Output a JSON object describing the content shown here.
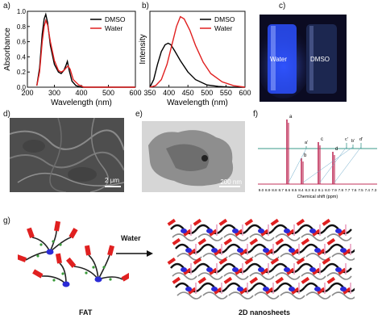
{
  "panels": {
    "a": "a)",
    "b": "b)",
    "c": "c)",
    "d": "d)",
    "e": "e)",
    "f": "f)",
    "g": "g)"
  },
  "chart_data": [
    {
      "type": "line",
      "xlabel": "Wavelength (nm)",
      "ylabel": "Absorbance",
      "xlim": [
        200,
        600
      ],
      "ylim": [
        0,
        1.0
      ],
      "xticks": [
        "200",
        "300",
        "400",
        "500",
        "600"
      ],
      "yticks": [
        "0.0",
        "0.2",
        "0.4",
        "0.6",
        "0.8",
        "1.0"
      ],
      "legend": "top-right",
      "series": [
        {
          "name": "DMSO",
          "color": "#000000",
          "x": [
            235,
            245,
            255,
            262,
            268,
            275,
            285,
            300,
            315,
            325,
            335,
            342,
            348,
            355,
            365,
            380,
            400,
            450,
            500,
            600
          ],
          "y": [
            0.02,
            0.25,
            0.7,
            0.9,
            0.96,
            0.85,
            0.55,
            0.3,
            0.2,
            0.18,
            0.22,
            0.28,
            0.34,
            0.22,
            0.08,
            0.02,
            0.0,
            0.0,
            0.0,
            0.0
          ]
        },
        {
          "name": "Water",
          "color": "#e02020",
          "x": [
            235,
            245,
            255,
            262,
            268,
            275,
            285,
            300,
            315,
            325,
            335,
            342,
            350,
            358,
            370,
            390,
            410,
            450,
            500,
            600
          ],
          "y": [
            0.02,
            0.2,
            0.6,
            0.8,
            0.88,
            0.82,
            0.6,
            0.35,
            0.22,
            0.2,
            0.22,
            0.25,
            0.28,
            0.24,
            0.1,
            0.03,
            0.0,
            0.0,
            0.0,
            0.0
          ]
        }
      ]
    },
    {
      "type": "line",
      "xlabel": "Wavelength (nm)",
      "ylabel": "Intensity",
      "xlim": [
        350,
        600
      ],
      "ylim": [
        0,
        1.0
      ],
      "xticks": [
        "350",
        "400",
        "450",
        "500",
        "550",
        "600"
      ],
      "legend": "top-right",
      "series": [
        {
          "name": "DMSO",
          "color": "#000000",
          "x": [
            350,
            360,
            370,
            380,
            390,
            398,
            405,
            415,
            430,
            450,
            470,
            500,
            530,
            560,
            600
          ],
          "y": [
            0.0,
            0.1,
            0.3,
            0.47,
            0.56,
            0.58,
            0.56,
            0.48,
            0.35,
            0.2,
            0.1,
            0.03,
            0.01,
            0.0,
            0.0
          ]
        },
        {
          "name": "Water",
          "color": "#e02020",
          "x": [
            350,
            365,
            380,
            395,
            410,
            420,
            430,
            440,
            455,
            470,
            490,
            510,
            540,
            570,
            600
          ],
          "y": [
            0.0,
            0.02,
            0.1,
            0.3,
            0.6,
            0.8,
            0.93,
            0.9,
            0.75,
            0.55,
            0.33,
            0.18,
            0.07,
            0.02,
            0.0
          ]
        }
      ]
    }
  ],
  "panel_c": {
    "label_left": "Water",
    "label_right": "DMSO"
  },
  "panel_d": {
    "scalebar": "2 μm"
  },
  "panel_e": {
    "scalebar": "200 nm"
  },
  "panel_f": {
    "xticks": [
      "9.0",
      "8.9",
      "8.8",
      "8.7",
      "8.6",
      "8.5",
      "8.4",
      "8.3",
      "8.2",
      "8.1",
      "8.0",
      "7.9",
      "7.8",
      "7.7",
      "7.6",
      "7.5",
      "7.4",
      "7.3"
    ],
    "xlabel": "Chemical shift (ppm)",
    "peak_labels": [
      "a",
      "a'",
      "b",
      "c",
      "c'",
      "b'",
      "d'",
      "d"
    ]
  },
  "panel_g": {
    "arrow_label": "Water",
    "left_caption": "FAT",
    "right_caption": "2D nanosheets"
  },
  "colors": {
    "red": "#e02020",
    "blue": "#2b2bd6",
    "green": "#3a9a3a"
  }
}
